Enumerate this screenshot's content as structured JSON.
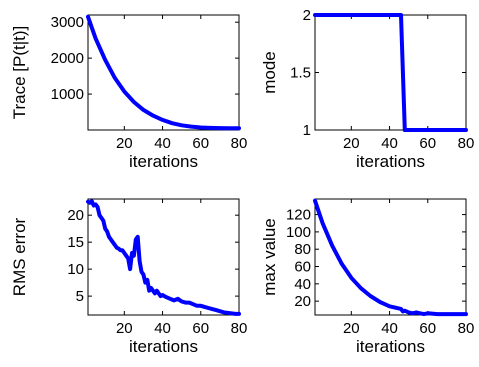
{
  "chart_data": [
    {
      "type": "line",
      "xlabel": "iterations",
      "ylabel": "Trace [P(t|t)]",
      "xlim": [
        1,
        80
      ],
      "ylim": [
        0,
        3200
      ],
      "xticks": [
        20,
        40,
        60,
        80
      ],
      "yticks": [
        1000,
        2000,
        3000
      ],
      "grid": false,
      "color": "#0000ff",
      "x": [
        1,
        5,
        10,
        15,
        20,
        25,
        30,
        35,
        40,
        45,
        50,
        55,
        60,
        65,
        70,
        75,
        80
      ],
      "y": [
        3150,
        2550,
        1950,
        1450,
        1070,
        780,
        560,
        400,
        280,
        190,
        130,
        95,
        70,
        58,
        52,
        50,
        50
      ]
    },
    {
      "type": "line",
      "xlabel": "iterations",
      "ylabel": "mode",
      "xlim": [
        1,
        80
      ],
      "ylim": [
        1,
        2
      ],
      "xticks": [
        20,
        40,
        60,
        80
      ],
      "yticks": [
        1,
        1.5,
        2
      ],
      "grid": false,
      "color": "#0000ff",
      "x": [
        1,
        10,
        20,
        30,
        40,
        46,
        47,
        48,
        55,
        60,
        70,
        80
      ],
      "y": [
        2,
        2,
        2,
        2,
        2,
        2,
        1.5,
        1,
        1,
        1,
        1,
        1
      ]
    },
    {
      "type": "line",
      "xlabel": "iterations",
      "ylabel": "RMS error",
      "xlim": [
        1,
        80
      ],
      "ylim": [
        1.5,
        23
      ],
      "xticks": [
        20,
        40,
        60,
        80
      ],
      "yticks": [
        5,
        10,
        15,
        20
      ],
      "grid": false,
      "color": "#0000ff",
      "x": [
        1,
        2,
        3,
        4,
        5,
        6,
        7,
        8,
        9,
        10,
        11,
        12,
        13,
        14,
        15,
        16,
        17,
        18,
        19,
        20,
        21,
        22,
        23,
        24,
        25,
        26,
        27,
        28,
        29,
        30,
        31,
        32,
        33,
        34,
        35,
        36,
        37,
        38,
        39,
        40,
        42,
        44,
        46,
        48,
        50,
        52,
        54,
        56,
        58,
        60,
        62,
        64,
        66,
        68,
        70,
        72,
        74,
        76,
        78,
        80
      ],
      "y": [
        22.5,
        22.3,
        22.6,
        21.8,
        22.0,
        21.5,
        20.0,
        19.5,
        19.0,
        17.5,
        17.0,
        16.0,
        15.5,
        15.0,
        14.5,
        14.0,
        13.8,
        13.5,
        13.5,
        13.0,
        12.5,
        12.0,
        10.0,
        13.0,
        12.5,
        15.5,
        16.0,
        11.5,
        9.5,
        9.0,
        7.5,
        8.0,
        6.0,
        6.5,
        6.0,
        5.5,
        6.0,
        5.5,
        5.0,
        5.2,
        4.8,
        4.5,
        4.2,
        4.5,
        4.0,
        3.8,
        3.8,
        3.5,
        3.2,
        3.2,
        3.0,
        2.8,
        2.6,
        2.4,
        2.2,
        2.0,
        1.9,
        1.8,
        1.7,
        1.7
      ]
    },
    {
      "type": "line",
      "xlabel": "iterations",
      "ylabel": "max value",
      "xlim": [
        1,
        80
      ],
      "ylim": [
        4,
        138
      ],
      "xticks": [
        20,
        40,
        60,
        80
      ],
      "yticks": [
        20,
        40,
        60,
        80,
        100,
        120
      ],
      "grid": false,
      "color": "#0000ff",
      "x": [
        1,
        5,
        10,
        15,
        20,
        25,
        30,
        35,
        40,
        44,
        46,
        47,
        48,
        50,
        52,
        54,
        56,
        58,
        60,
        65,
        70,
        75,
        80
      ],
      "y": [
        136,
        110,
        84,
        63,
        47,
        35,
        26,
        19,
        14,
        12,
        11,
        8,
        9,
        7,
        6,
        7,
        6,
        5,
        6,
        5,
        5,
        5,
        5
      ]
    }
  ]
}
